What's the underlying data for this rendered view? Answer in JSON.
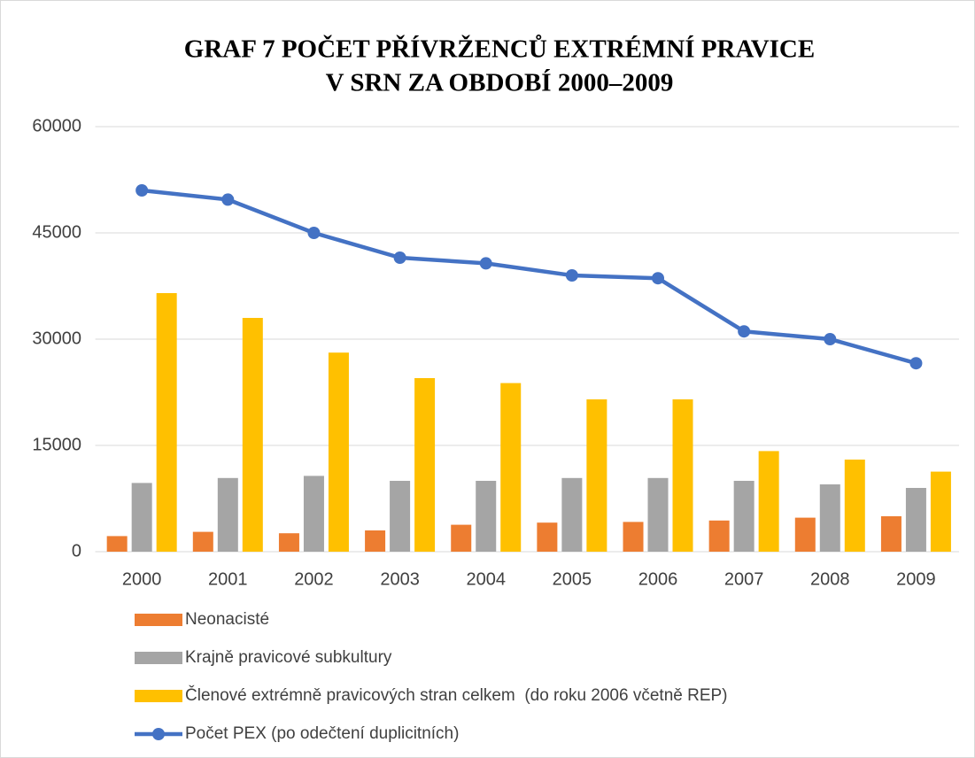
{
  "chart_data": {
    "type": "bar_line",
    "title": [
      "GRAF 7 POČET PŘÍVRŽENCŮ EXTRÉMNÍ PRAVICE",
      "V SRN ZA OBDOBÍ 2000–2009"
    ],
    "categories": [
      "2000",
      "2001",
      "2002",
      "2003",
      "2004",
      "2005",
      "2006",
      "2007",
      "2008",
      "2009"
    ],
    "series": [
      {
        "name": "Neonacisté",
        "type": "bar",
        "color": "#ed7d31",
        "values": [
          2200,
          2800,
          2600,
          3000,
          3800,
          4100,
          4200,
          4400,
          4800,
          5000
        ]
      },
      {
        "name": "Krajně pravicové subkultury",
        "type": "bar",
        "color": "#a5a5a5",
        "values": [
          9700,
          10400,
          10700,
          10000,
          10000,
          10400,
          10400,
          10000,
          9500,
          9000
        ]
      },
      {
        "name": "Členové extrémně pravicových stran celkem  (do roku 2006 včetně REP)",
        "type": "bar",
        "color": "#ffc000",
        "values": [
          36500,
          33000,
          28100,
          24500,
          23800,
          21500,
          21500,
          14200,
          13000,
          11300
        ]
      },
      {
        "name": "Počet PEX (po odečtení duplicitních)",
        "type": "line",
        "color": "#4472c4",
        "values": [
          51000,
          49700,
          45000,
          41500,
          40700,
          39000,
          38600,
          31100,
          30000,
          26600
        ]
      }
    ],
    "ylim": [
      0,
      60000
    ],
    "yticks": [
      0,
      15000,
      30000,
      45000,
      60000
    ],
    "grid": true,
    "legend": "bottom"
  }
}
